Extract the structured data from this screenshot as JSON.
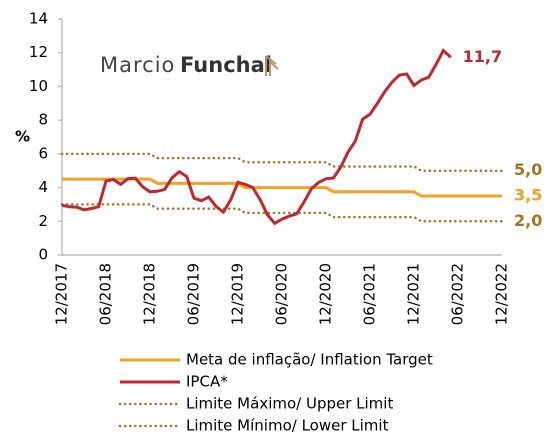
{
  "chart_data": {
    "type": "line",
    "logo": [
      "Marcio",
      "Funchal"
    ],
    "y_label": "%",
    "categories": [
      "12/2017",
      null,
      null,
      null,
      null,
      null,
      "06/2018",
      null,
      null,
      null,
      null,
      null,
      "12/2018",
      null,
      null,
      null,
      null,
      null,
      "06/2019",
      null,
      null,
      null,
      null,
      null,
      "12/2019",
      null,
      null,
      null,
      null,
      null,
      "06/2020",
      null,
      null,
      null,
      null,
      null,
      "12/2020",
      null,
      null,
      null,
      null,
      null,
      "06/2021",
      null,
      null,
      null,
      null,
      null,
      "12/2021",
      null,
      null,
      null,
      null,
      null,
      "06/2022",
      null,
      null,
      null,
      null,
      null,
      "12/2022"
    ],
    "ylim": [
      0,
      14
    ],
    "yticks": [
      0,
      2,
      4,
      6,
      8,
      10,
      12,
      14
    ],
    "series": [
      {
        "name": "Meta de inflação/ Inflation Target",
        "color": "#f5a11c",
        "style": "solid",
        "values": [
          4.5,
          4.5,
          4.5,
          4.5,
          4.5,
          4.5,
          4.5,
          4.5,
          4.5,
          4.5,
          4.5,
          4.5,
          4.5,
          4.25,
          4.25,
          4.25,
          4.25,
          4.25,
          4.25,
          4.25,
          4.25,
          4.25,
          4.25,
          4.25,
          4.25,
          4.0,
          4.0,
          4.0,
          4.0,
          4.0,
          4.0,
          4.0,
          4.0,
          4.0,
          4.0,
          4.0,
          4.0,
          3.75,
          3.75,
          3.75,
          3.75,
          3.75,
          3.75,
          3.75,
          3.75,
          3.75,
          3.75,
          3.75,
          3.75,
          3.5,
          3.5,
          3.5,
          3.5,
          3.5,
          3.5,
          3.5,
          3.5,
          3.5,
          3.5,
          3.5,
          3.5
        ],
        "value_labels": [
          null,
          null,
          null,
          null,
          null,
          null,
          null,
          null,
          null,
          null,
          null,
          null,
          null,
          null,
          null,
          null,
          null,
          null,
          null,
          null,
          null,
          null,
          null,
          null,
          null,
          null,
          null,
          null,
          null,
          null,
          null,
          null,
          null,
          null,
          null,
          null,
          null,
          null,
          null,
          null,
          null,
          null,
          null,
          null,
          null,
          null,
          null,
          null,
          null,
          null,
          null,
          null,
          null,
          null,
          null,
          null,
          null,
          null,
          null,
          null,
          "3,5"
        ]
      },
      {
        "name": "IPCA*",
        "color": "#c1272d",
        "style": "solid",
        "values": [
          2.95,
          2.86,
          2.84,
          2.68,
          2.76,
          2.86,
          4.39,
          4.48,
          4.19,
          4.53,
          4.56,
          4.05,
          3.75,
          3.78,
          3.89,
          4.58,
          4.94,
          4.66,
          3.37,
          3.22,
          3.43,
          2.89,
          2.54,
          3.27,
          4.31,
          4.19,
          4.01,
          3.3,
          2.4,
          1.88,
          2.13,
          2.31,
          2.44,
          3.14,
          3.92,
          4.31,
          4.52,
          4.56,
          5.2,
          6.1,
          6.76,
          8.06,
          8.35,
          8.99,
          9.68,
          10.25,
          10.67,
          10.74,
          10.06,
          10.38,
          10.54,
          11.3,
          12.13,
          11.73,
          null,
          null,
          null,
          null,
          null,
          null,
          null
        ],
        "value_labels": [
          null,
          null,
          null,
          null,
          null,
          null,
          null,
          null,
          null,
          null,
          null,
          null,
          null,
          null,
          null,
          null,
          null,
          null,
          null,
          null,
          null,
          null,
          null,
          null,
          null,
          null,
          null,
          null,
          null,
          null,
          null,
          null,
          null,
          null,
          null,
          null,
          null,
          null,
          null,
          null,
          null,
          null,
          null,
          null,
          null,
          null,
          null,
          null,
          null,
          null,
          null,
          null,
          null,
          "11,7",
          null,
          null,
          null,
          null,
          null,
          null,
          null
        ]
      },
      {
        "name": "Limite Máximo/ Upper Limit",
        "color": "#a8731f",
        "style": "dotted",
        "values": [
          6,
          6,
          6,
          6,
          6,
          6,
          6,
          6,
          6,
          6,
          6,
          6,
          6,
          5.75,
          5.75,
          5.75,
          5.75,
          5.75,
          5.75,
          5.75,
          5.75,
          5.75,
          5.75,
          5.75,
          5.75,
          5.5,
          5.5,
          5.5,
          5.5,
          5.5,
          5.5,
          5.5,
          5.5,
          5.5,
          5.5,
          5.5,
          5.5,
          5.25,
          5.25,
          5.25,
          5.25,
          5.25,
          5.25,
          5.25,
          5.25,
          5.25,
          5.25,
          5.25,
          5.25,
          5.0,
          5.0,
          5.0,
          5.0,
          5.0,
          5.0,
          5.0,
          5.0,
          5.0,
          5.0,
          5.0,
          5.0
        ],
        "value_labels": [
          null,
          null,
          null,
          null,
          null,
          null,
          null,
          null,
          null,
          null,
          null,
          null,
          null,
          null,
          null,
          null,
          null,
          null,
          null,
          null,
          null,
          null,
          null,
          null,
          null,
          null,
          null,
          null,
          null,
          null,
          null,
          null,
          null,
          null,
          null,
          null,
          null,
          null,
          null,
          null,
          null,
          null,
          null,
          null,
          null,
          null,
          null,
          null,
          null,
          null,
          null,
          null,
          null,
          null,
          null,
          null,
          null,
          null,
          null,
          null,
          "5,0"
        ]
      },
      {
        "name": "Limite Mínimo/ Lower Limit",
        "color": "#a8731f",
        "style": "dotted",
        "values": [
          3,
          3,
          3,
          3,
          3,
          3,
          3,
          3,
          3,
          3,
          3,
          3,
          3,
          2.75,
          2.75,
          2.75,
          2.75,
          2.75,
          2.75,
          2.75,
          2.75,
          2.75,
          2.75,
          2.75,
          2.75,
          2.5,
          2.5,
          2.5,
          2.5,
          2.5,
          2.5,
          2.5,
          2.5,
          2.5,
          2.5,
          2.5,
          2.5,
          2.25,
          2.25,
          2.25,
          2.25,
          2.25,
          2.25,
          2.25,
          2.25,
          2.25,
          2.25,
          2.25,
          2.25,
          2.0,
          2.0,
          2.0,
          2.0,
          2.0,
          2.0,
          2.0,
          2.0,
          2.0,
          2.0,
          2.0,
          2.0
        ],
        "value_labels": [
          null,
          null,
          null,
          null,
          null,
          null,
          null,
          null,
          null,
          null,
          null,
          null,
          null,
          null,
          null,
          null,
          null,
          null,
          null,
          null,
          null,
          null,
          null,
          null,
          null,
          null,
          null,
          null,
          null,
          null,
          null,
          null,
          null,
          null,
          null,
          null,
          null,
          null,
          null,
          null,
          null,
          null,
          null,
          null,
          null,
          null,
          null,
          null,
          null,
          null,
          null,
          null,
          null,
          null,
          null,
          null,
          null,
          null,
          null,
          null,
          "2,0"
        ]
      }
    ]
  }
}
